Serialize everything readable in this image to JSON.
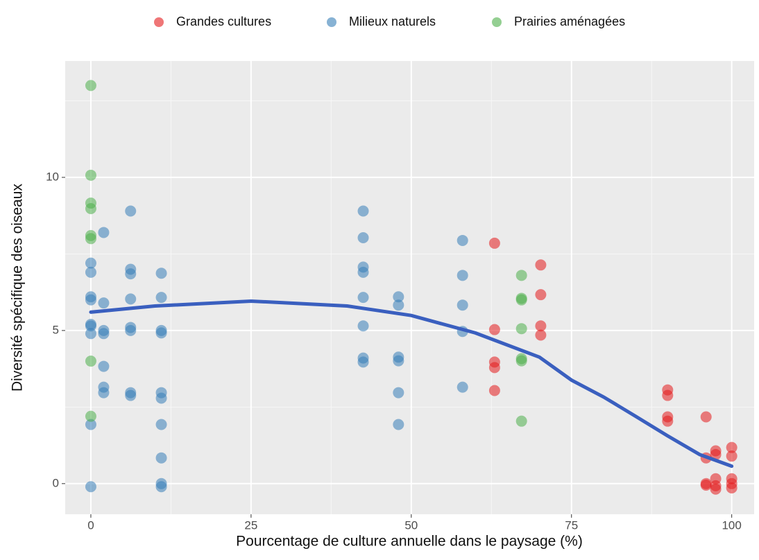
{
  "chart_data": {
    "type": "scatter",
    "x_label": "Pourcentage de culture annuelle dans le paysage (%)",
    "y_label": "Diversité spécifique des oiseaux",
    "xlim": [
      -4,
      103.5
    ],
    "ylim": [
      -1,
      13.8
    ],
    "xticks": [
      0,
      25,
      50,
      75,
      100
    ],
    "yticks": [
      0,
      5,
      10
    ],
    "x_minor_ticks": [
      12.5,
      37.5,
      62.5,
      87.5
    ],
    "y_minor_ticks": [
      2.5,
      7.5,
      12.5
    ],
    "grid": true,
    "legend": "top",
    "series": [
      {
        "name": "Grandes cultures",
        "color": "#e41a1c",
        "x": [
          63,
          63,
          63,
          63,
          63,
          70.2,
          70.2,
          70.2,
          70.2,
          90,
          90,
          90,
          90,
          96,
          96,
          96,
          96,
          97.5,
          97.5,
          97.5,
          97.5,
          97.5,
          100,
          100,
          100,
          100,
          100
        ],
        "values": [
          7.85,
          5.03,
          3.97,
          3.79,
          3.04,
          7.14,
          6.17,
          5.15,
          4.85,
          3.06,
          2.88,
          2.18,
          2.04,
          2.18,
          0.84,
          0,
          -0.05,
          1.07,
          0.95,
          0.16,
          -0.07,
          -0.18,
          1.18,
          0.9,
          0.16,
          0,
          -0.14
        ]
      },
      {
        "name": "Milieux naturels",
        "color": "#377eb8",
        "x": [
          0,
          0,
          0,
          0,
          0,
          0,
          0,
          0,
          0,
          2,
          2,
          2,
          2,
          2,
          2,
          2,
          6.2,
          6.2,
          6.2,
          6.2,
          6.2,
          6.2,
          6.2,
          6.2,
          11,
          11,
          11,
          11,
          11,
          11,
          11,
          11,
          11,
          11,
          42.5,
          42.5,
          42.5,
          42.5,
          42.5,
          42.5,
          42.5,
          42.5,
          48,
          48,
          48,
          48,
          48,
          48,
          58,
          58,
          58,
          58,
          58
        ],
        "values": [
          7.2,
          6.9,
          6.1,
          6.0,
          5.2,
          5.15,
          4.9,
          1.93,
          -0.1,
          8.2,
          5.9,
          5.0,
          4.9,
          3.83,
          3.15,
          2.97,
          8.9,
          7.0,
          6.85,
          6.03,
          5.1,
          5.0,
          2.97,
          2.88,
          6.87,
          6.08,
          5.0,
          4.92,
          2.97,
          2.79,
          1.93,
          0.84,
          0,
          -0.1,
          8.9,
          8.03,
          7.07,
          6.9,
          6.08,
          5.15,
          4.1,
          3.97,
          6.1,
          5.83,
          4.13,
          4.01,
          2.97,
          1.93,
          7.94,
          6.8,
          5.83,
          4.97,
          3.15
        ]
      },
      {
        "name": "Prairies aménagées",
        "color": "#4daf4a",
        "x": [
          0,
          0,
          0,
          0,
          0,
          0,
          0,
          0,
          67.2,
          67.2,
          67.2,
          67.2,
          67.2,
          67.2,
          67.2
        ],
        "values": [
          13.0,
          10.07,
          9.16,
          8.98,
          8.1,
          8.0,
          4.0,
          2.2,
          6.8,
          6.05,
          6.0,
          5.06,
          4.08,
          4.01,
          2.04
        ]
      }
    ],
    "smooth": {
      "color": "#3a5fbf",
      "x": [
        0,
        10,
        25,
        40,
        50,
        60,
        70,
        75,
        80,
        85,
        90,
        95,
        100
      ],
      "values": [
        5.6,
        5.8,
        5.96,
        5.8,
        5.49,
        4.92,
        4.13,
        3.38,
        2.83,
        2.2,
        1.56,
        0.95,
        0.57
      ]
    }
  }
}
